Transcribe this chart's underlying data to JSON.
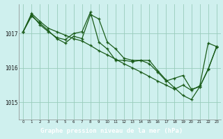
{
  "title": "Graphe pression niveau de la mer (hPa)",
  "bg_plot": "#cff0ee",
  "bg_label": "#2d6a2d",
  "label_color": "#ffffff",
  "grid_color": "#99ccbb",
  "line_color": "#1a5c1a",
  "xlim": [
    -0.5,
    23.5
  ],
  "ylim": [
    1014.5,
    1017.85
  ],
  "yticks": [
    1015,
    1016,
    1017
  ],
  "xticks": [
    0,
    1,
    2,
    3,
    4,
    5,
    6,
    7,
    8,
    9,
    10,
    11,
    12,
    13,
    14,
    15,
    16,
    17,
    18,
    19,
    20,
    21,
    22,
    23
  ],
  "series": [
    [
      1017.05,
      1017.58,
      1017.35,
      1017.15,
      1017.05,
      1016.95,
      1016.85,
      1016.78,
      1016.65,
      1016.5,
      1016.38,
      1016.25,
      1016.12,
      1016.0,
      1015.88,
      1015.75,
      1015.62,
      1015.5,
      1015.38,
      1015.5,
      1015.35,
      1015.48,
      1016.72,
      1016.62
    ],
    [
      1017.05,
      1017.55,
      1017.25,
      1017.05,
      1016.88,
      1016.82,
      1017.0,
      1017.05,
      1017.62,
      1016.75,
      1016.55,
      1016.22,
      1016.22,
      1016.18,
      1016.22,
      1016.22,
      1015.92,
      1015.65,
      1015.42,
      1015.2,
      1015.08,
      1015.45,
      1015.97,
      1016.6
    ],
    [
      1017.05,
      1017.5,
      1017.3,
      1017.08,
      1016.85,
      1016.72,
      1016.92,
      1016.85,
      1017.55,
      1017.42,
      1016.75,
      1016.55,
      1016.28,
      1016.22,
      1016.22,
      1016.12,
      1015.88,
      1015.62,
      1015.7,
      1015.78,
      1015.38,
      1015.45,
      1015.95,
      1016.62
    ]
  ]
}
